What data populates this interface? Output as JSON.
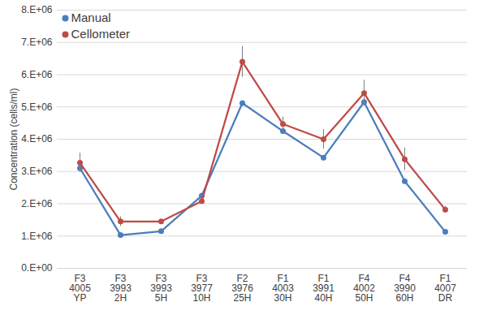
{
  "chart_data": {
    "type": "line",
    "ylabel": "Concentration (cells/ml)",
    "categories": [
      "F3\n4005\nYP",
      "F3\n3993\n2H",
      "F3\n3993\n5H",
      "F3\n3977\n10H",
      "F2\n3976\n25H",
      "F1\n4003\n30H",
      "F1\n3991\n40H",
      "F4\n4002\n50H",
      "F4\n3990\n60H",
      "F1\n4007\nDR"
    ],
    "series": [
      {
        "name": "Manual",
        "color": "#4a7ebb",
        "marker": "circle",
        "values": [
          3100000,
          1030000,
          1150000,
          2250000,
          5120000,
          4250000,
          3430000,
          5150000,
          2700000,
          1130000
        ]
      },
      {
        "name": "Cellometer",
        "color": "#be4b48",
        "marker": "circle",
        "values": [
          3270000,
          1450000,
          1450000,
          2080000,
          6400000,
          4470000,
          4000000,
          5430000,
          3380000,
          1820000
        ],
        "errors": [
          300000,
          150000,
          50000,
          50000,
          480000,
          220000,
          300000,
          400000,
          350000,
          100000
        ]
      }
    ],
    "ylim": [
      0,
      8000000
    ],
    "yticks": [
      {
        "value": 0,
        "label": "0.E+00"
      },
      {
        "value": 1000000,
        "label": "1.E+06"
      },
      {
        "value": 2000000,
        "label": "2.E+06"
      },
      {
        "value": 3000000,
        "label": "3.E+06"
      },
      {
        "value": 4000000,
        "label": "4.E+06"
      },
      {
        "value": 5000000,
        "label": "5.E+06"
      },
      {
        "value": 6000000,
        "label": "6.E+06"
      },
      {
        "value": 7000000,
        "label": "7.E+06"
      },
      {
        "value": 8000000,
        "label": "8.E+06"
      }
    ],
    "grid": true,
    "legend": "top-left"
  }
}
